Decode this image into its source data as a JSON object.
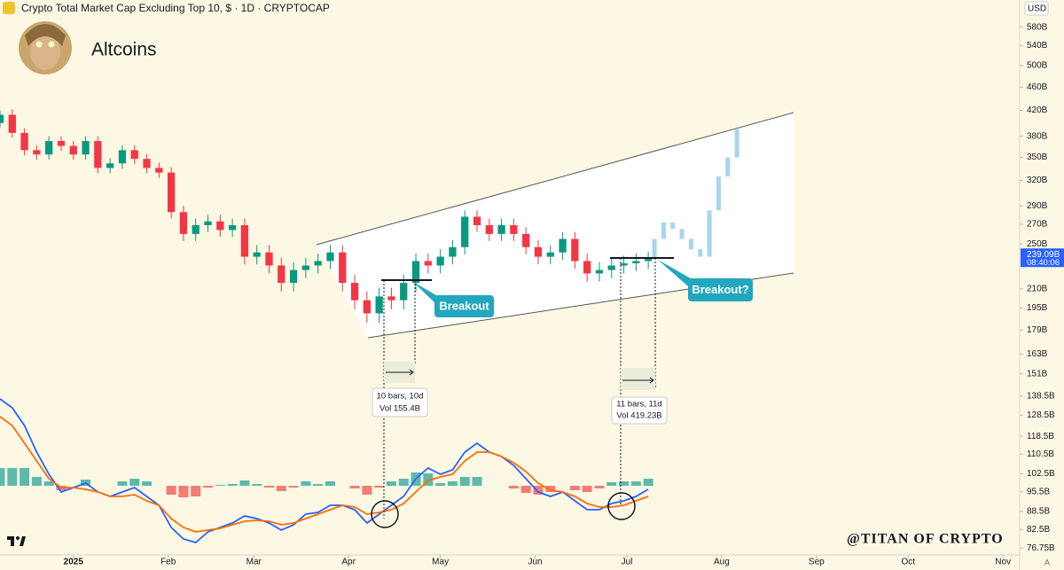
{
  "chart_data": {
    "type": "candlestick",
    "header": "Crypto Total Market Cap Excluding Top 10, $ · 1D · CRYPTOCAP",
    "title": "Altcoins",
    "currency": "USD",
    "watermark": "@TITAN OF CRYPTO",
    "auto_scale": "A",
    "log_scale": true,
    "up_color": "#089981",
    "down_color": "#f23645",
    "xlim": [
      -24,
      308
    ],
    "xticks": [
      {
        "value": 0,
        "label": "2025"
      },
      {
        "value": 31,
        "label": "Feb"
      },
      {
        "value": 59,
        "label": "Mar"
      },
      {
        "value": 90,
        "label": "Apr"
      },
      {
        "value": 120,
        "label": "May"
      },
      {
        "value": 151,
        "label": "Jun"
      },
      {
        "value": 181,
        "label": "Jul"
      },
      {
        "value": 212,
        "label": "Aug"
      },
      {
        "value": 243,
        "label": "Sep"
      },
      {
        "value": 273,
        "label": "Oct"
      },
      {
        "value": 304,
        "label": "Nov"
      }
    ],
    "ylim": [
      75,
      645
    ],
    "yticks": [
      {
        "value": 580,
        "label": "580B"
      },
      {
        "value": 540,
        "label": "540B"
      },
      {
        "value": 500,
        "label": "500B"
      },
      {
        "value": 460,
        "label": "460B"
      },
      {
        "value": 420,
        "label": "420B"
      },
      {
        "value": 380,
        "label": "380B"
      },
      {
        "value": 350,
        "label": "350B"
      },
      {
        "value": 320,
        "label": "320B"
      },
      {
        "value": 290,
        "label": "290B"
      },
      {
        "value": 270,
        "label": "270B"
      },
      {
        "value": 250,
        "label": "250B"
      },
      {
        "value": 210,
        "label": "210B"
      },
      {
        "value": 195,
        "label": "195B"
      },
      {
        "value": 179,
        "label": "179B"
      },
      {
        "value": 163,
        "label": "163B"
      },
      {
        "value": 151,
        "label": "151B"
      },
      {
        "value": 138.5,
        "label": "138.5B"
      },
      {
        "value": 128.5,
        "label": "128.5B"
      },
      {
        "value": 118.5,
        "label": "118.5B"
      },
      {
        "value": 110.5,
        "label": "110.5B"
      },
      {
        "value": 102.5,
        "label": "102.5B"
      },
      {
        "value": 95.5,
        "label": "95.5B"
      },
      {
        "value": 88.5,
        "label": "88.5B"
      },
      {
        "value": 82.5,
        "label": "82.5B"
      },
      {
        "value": 76.75,
        "label": "76.75B"
      }
    ],
    "last_price": {
      "value": 239.09,
      "label": "239.09B"
    },
    "countdown": "08:40:06",
    "x": [
      -24,
      -20,
      -16,
      -12,
      -8,
      -4,
      0,
      4,
      8,
      12,
      16,
      20,
      24,
      28,
      32,
      36,
      40,
      44,
      48,
      52,
      56,
      60,
      64,
      68,
      72,
      76,
      80,
      84,
      88,
      92,
      96,
      100,
      104,
      108,
      112,
      116,
      120,
      124,
      128,
      132,
      136,
      140,
      144,
      148,
      152,
      156,
      160,
      164,
      168,
      172,
      176,
      180,
      184,
      188
    ],
    "open": [
      400,
      413,
      385,
      360,
      354,
      373,
      366,
      354,
      373,
      336,
      342,
      360,
      348,
      336,
      330,
      283,
      260,
      269,
      273,
      264,
      269,
      238,
      242,
      230,
      215,
      226,
      230,
      234,
      242,
      215,
      201,
      191,
      204,
      201,
      215,
      234,
      230,
      238,
      247,
      278,
      269,
      260,
      269,
      260,
      247,
      238,
      242,
      255,
      234,
      223,
      226,
      230,
      232,
      234
    ],
    "high": [
      420,
      422,
      392,
      367,
      380,
      380,
      373,
      380,
      380,
      349,
      367,
      367,
      355,
      343,
      337,
      290,
      276,
      280,
      280,
      276,
      276,
      249,
      249,
      237,
      233,
      237,
      241,
      249,
      249,
      222,
      208,
      211,
      211,
      222,
      241,
      241,
      245,
      254,
      285,
      285,
      276,
      276,
      276,
      267,
      254,
      249,
      262,
      262,
      241,
      233,
      237,
      239,
      241,
      243
    ],
    "low": [
      393,
      378,
      353,
      347,
      347,
      359,
      347,
      347,
      329,
      329,
      335,
      341,
      329,
      323,
      276,
      253,
      253,
      262,
      257,
      257,
      231,
      231,
      223,
      208,
      208,
      219,
      223,
      227,
      208,
      194,
      184,
      184,
      194,
      194,
      208,
      223,
      223,
      231,
      240,
      262,
      253,
      253,
      253,
      240,
      231,
      231,
      235,
      227,
      216,
      216,
      219,
      223,
      225,
      227
    ],
    "close": [
      413,
      385,
      360,
      354,
      373,
      366,
      354,
      373,
      336,
      342,
      360,
      348,
      336,
      330,
      283,
      260,
      269,
      273,
      264,
      269,
      238,
      242,
      230,
      215,
      226,
      230,
      234,
      242,
      215,
      201,
      191,
      204,
      201,
      215,
      234,
      230,
      238,
      247,
      278,
      269,
      260,
      269,
      260,
      247,
      238,
      242,
      255,
      234,
      223,
      226,
      230,
      232,
      234,
      236
    ],
    "projection": {
      "color": "#aad4ec",
      "x": [
        190,
        193,
        196,
        199,
        202,
        205,
        208,
        211,
        214,
        217
      ],
      "values": [
        255,
        272,
        265,
        255,
        245,
        238,
        285,
        325,
        350,
        390
      ]
    },
    "annotations": {
      "left_breakout": "Breakout",
      "right_breakout": "Breakout?",
      "left_bars": "10 bars, 10d",
      "left_volume": "Vol 155.4B",
      "right_bars": "11 bars, 11d",
      "right_volume": "Vol 419.23B"
    },
    "indicator": {
      "type": "macd",
      "ylim": [
        -8,
        11
      ],
      "histogram": {
        "up_color": "#26a69a",
        "down_color": "#ef5350",
        "values": [
          2,
          2,
          2,
          1,
          0.5,
          -0.5,
          0,
          0.7,
          0,
          0,
          0.5,
          0.8,
          0.5,
          0,
          -1,
          -1.3,
          -1.2,
          -0.2,
          0.1,
          0.2,
          0.6,
          0.2,
          -0.2,
          -0.6,
          -0.2,
          0.5,
          0.2,
          0.5,
          0,
          -0.3,
          -1,
          -0.2,
          0.5,
          0.8,
          1.5,
          1.4,
          0.3,
          0.5,
          1,
          1,
          0,
          0,
          -0.3,
          -0.8,
          -1,
          -0.7,
          0,
          -0.5,
          -0.7,
          -0.3,
          0.4,
          0.5,
          0.5,
          0.8
        ]
      },
      "series": [
        {
          "color": "#2962ff",
          "values": [
            9.8,
            8.8,
            6.8,
            3.8,
            1.3,
            -0.7,
            -0.2,
            0.3,
            -0.7,
            -1.2,
            -0.7,
            -0.2,
            -1.2,
            -2.2,
            -4.7,
            -6,
            -6.4,
            -5.2,
            -4.7,
            -4.2,
            -3.4,
            -3.7,
            -4.2,
            -5,
            -4.4,
            -3.2,
            -3,
            -2.2,
            -2.2,
            -2.7,
            -4.2,
            -3.2,
            -2.2,
            -1.2,
            0.8,
            2,
            1.3,
            1.8,
            3.8,
            4.8,
            3.8,
            3.3,
            2.3,
            0.8,
            -0.7,
            -1.2,
            -0.7,
            -1.7,
            -2.7,
            -2.7,
            -2,
            -1.7,
            -1.2,
            -0.4
          ]
        },
        {
          "color": "#ff6d00",
          "values": [
            7.8,
            6.8,
            4.8,
            2.8,
            0.8,
            -0.2,
            -0.2,
            -0.4,
            -0.7,
            -1.2,
            -1.2,
            -1,
            -1.7,
            -2.2,
            -3.7,
            -4.7,
            -5.2,
            -5,
            -4.8,
            -4.4,
            -4,
            -3.9,
            -4,
            -4.4,
            -4.2,
            -3.7,
            -3.2,
            -2.7,
            -2.2,
            -2.4,
            -3.2,
            -3,
            -2.7,
            -2,
            -0.7,
            0.6,
            1,
            1.3,
            2.8,
            3.8,
            3.8,
            3.3,
            2.6,
            1.6,
            0.3,
            -0.5,
            -0.7,
            -1.2,
            -2,
            -2.4,
            -2.4,
            -2.2,
            -1.7,
            -1.2
          ]
        }
      ]
    }
  }
}
